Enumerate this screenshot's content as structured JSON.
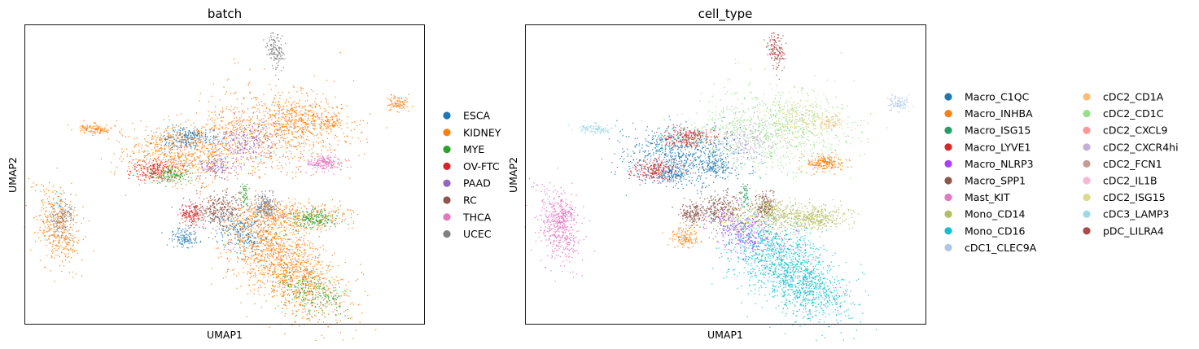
{
  "chart_data": [
    {
      "type": "scatter",
      "title": "batch",
      "xlabel": "UMAP1",
      "ylabel": "UMAP2",
      "grid": false,
      "ticks": false,
      "legend_position": "right",
      "legend": [
        {
          "name": "ESCA",
          "color": "#1f77b4"
        },
        {
          "name": "KIDNEY",
          "color": "#ff7f0e"
        },
        {
          "name": "MYE",
          "color": "#2ca02c"
        },
        {
          "name": "OV-FTC",
          "color": "#d62728"
        },
        {
          "name": "PAAD",
          "color": "#9467bd"
        },
        {
          "name": "RC",
          "color": "#8c564b"
        },
        {
          "name": "THCA",
          "color": "#e377c2"
        },
        {
          "name": "UCEC",
          "color": "#7f7f7f"
        }
      ]
    },
    {
      "type": "scatter",
      "title": "cell_type",
      "xlabel": "UMAP1",
      "ylabel": "UMAP2",
      "grid": false,
      "ticks": false,
      "legend_position": "right",
      "legend": [
        {
          "name": "Macro_C1QC",
          "color": "#1f77b4"
        },
        {
          "name": "Macro_INHBA",
          "color": "#ff7f0e"
        },
        {
          "name": "Macro_ISG15",
          "color": "#279e68"
        },
        {
          "name": "Macro_LYVE1",
          "color": "#d62728"
        },
        {
          "name": "Macro_NLRP3",
          "color": "#aa40fc"
        },
        {
          "name": "Macro_SPP1",
          "color": "#8c564b"
        },
        {
          "name": "Mast_KIT",
          "color": "#e377c2"
        },
        {
          "name": "Mono_CD14",
          "color": "#b5bd61"
        },
        {
          "name": "Mono_CD16",
          "color": "#17becf"
        },
        {
          "name": "cDC1_CLEC9A",
          "color": "#aec7e8"
        },
        {
          "name": "cDC2_CD1A",
          "color": "#ffbb78"
        },
        {
          "name": "cDC2_CD1C",
          "color": "#98df8a"
        },
        {
          "name": "cDC2_CXCL9",
          "color": "#ff9896"
        },
        {
          "name": "cDC2_CXCR4hi",
          "color": "#c5b0d5"
        },
        {
          "name": "cDC2_FCN1",
          "color": "#c49c94"
        },
        {
          "name": "cDC2_IL1B",
          "color": "#f7b6d2"
        },
        {
          "name": "cDC2_ISG15",
          "color": "#dbdb8d"
        },
        {
          "name": "cDC3_LAMP3",
          "color": "#9edae5"
        },
        {
          "name": "pDC_LILRA4",
          "color": "#ad494a"
        }
      ]
    }
  ]
}
